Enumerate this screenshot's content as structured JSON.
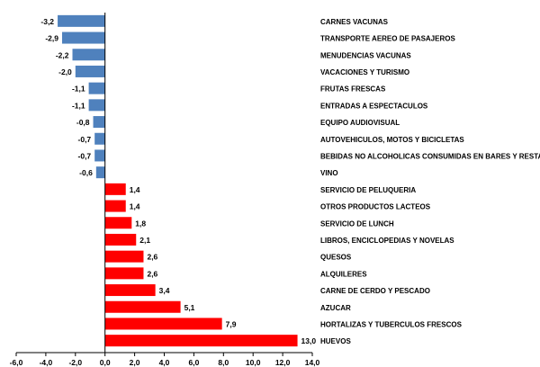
{
  "chart_data": {
    "type": "bar",
    "orientation": "horizontal",
    "title": "",
    "xlabel": "",
    "ylabel": "",
    "xlim": [
      -6.0,
      14.0
    ],
    "x_ticks": [
      "-6,0",
      "-4,0",
      "-2,0",
      "0,0",
      "2,0",
      "4,0",
      "6,0",
      "8,0",
      "10,0",
      "12,0",
      "14,0"
    ],
    "x_tick_values": [
      -6,
      -4,
      -2,
      0,
      2,
      4,
      6,
      8,
      10,
      12,
      14
    ],
    "grid": false,
    "legend": "none",
    "colors": {
      "negative": "#4F81BD",
      "positive": "#FF0000"
    },
    "categories": [
      "CARNES VACUNAS",
      "TRANSPORTE AEREO DE PASAJEROS",
      "MENUDENCIAS VACUNAS",
      "VACACIONES Y TURISMO",
      "FRUTAS FRESCAS",
      "ENTRADAS  A ESPECTACULOS",
      "EQUIPO AUDIOVISUAL",
      "AUTOVEHICULOS, MOTOS Y BICICLETAS",
      "BEBIDAS NO ALCOHOLICAS CONSUMIDAS EN BARES Y RESTAURANT",
      "VINO",
      "SERVICIO DE PELUQUERIA",
      "OTROS PRODUCTOS LACTEOS",
      "SERVICIO DE LUNCH",
      "LIBROS, ENCICLOPEDIAS Y NOVELAS",
      "QUESOS",
      "ALQUILERES",
      "CARNE DE CERDO Y PESCADO",
      "AZUCAR",
      "HORTALIZAS Y TUBERCULOS FRESCOS",
      "HUEVOS"
    ],
    "values": [
      -3.2,
      -2.9,
      -2.2,
      -2.0,
      -1.1,
      -1.1,
      -0.8,
      -0.7,
      -0.7,
      -0.6,
      1.4,
      1.4,
      1.8,
      2.1,
      2.6,
      2.6,
      3.4,
      5.1,
      7.9,
      13.0
    ],
    "value_labels": [
      "-3,2",
      "-2,9",
      "-2,2",
      "-2,0",
      "-1,1",
      "-1,1",
      "-0,8",
      "-0,7",
      "-0,7",
      "-0,6",
      "1,4",
      "1,4",
      "1,8",
      "2,1",
      "2,6",
      "2,6",
      "3,4",
      "5,1",
      "7,9",
      "13,0"
    ]
  }
}
